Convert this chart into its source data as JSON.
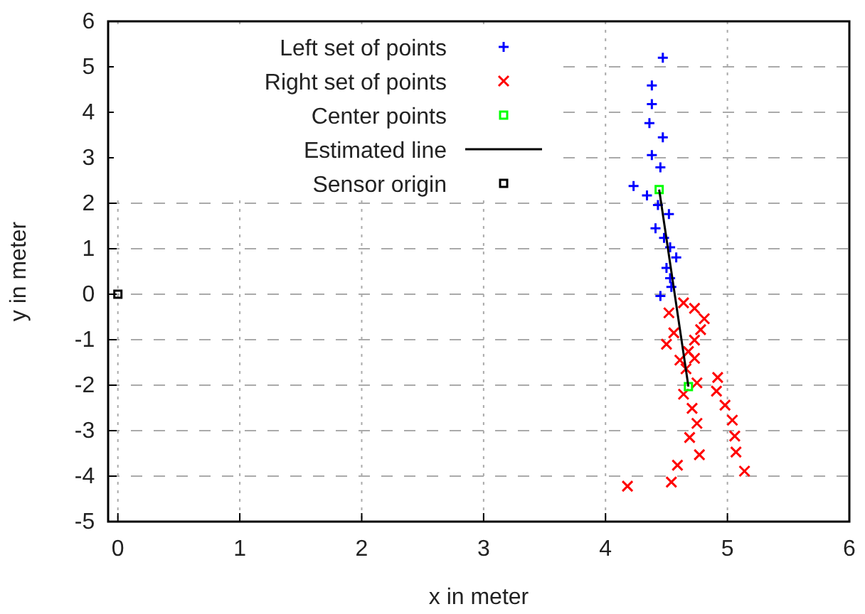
{
  "chart_data": {
    "type": "scatter",
    "xlabel": "x in meter",
    "ylabel": "y in meter",
    "xlim": [
      -0.08,
      6
    ],
    "ylim": [
      -5,
      6
    ],
    "xticks": [
      0,
      1,
      2,
      3,
      4,
      5,
      6
    ],
    "yticks": [
      -5,
      -4,
      -3,
      -2,
      -1,
      0,
      1,
      2,
      3,
      4,
      5,
      6
    ],
    "grid": true,
    "legend": "top left",
    "series": [
      {
        "name": "Left set of points",
        "marker": "plus",
        "color": "#0000ff",
        "x": [
          4.47,
          4.38,
          4.38,
          4.36,
          4.47,
          4.38,
          4.45,
          4.23,
          4.34,
          4.43,
          4.52,
          4.41,
          4.48,
          4.53,
          4.58,
          4.5,
          4.53,
          4.54,
          4.45
        ],
        "values": [
          5.2,
          4.59,
          4.18,
          3.76,
          3.45,
          3.06,
          2.79,
          2.38,
          2.17,
          1.96,
          1.76,
          1.45,
          1.24,
          1.03,
          0.81,
          0.58,
          0.35,
          0.16,
          -0.04
        ]
      },
      {
        "name": "Right set of points",
        "marker": "cross",
        "color": "#ff0000",
        "x": [
          4.64,
          4.73,
          4.52,
          4.81,
          4.78,
          4.56,
          4.73,
          4.5,
          4.68,
          4.61,
          4.73,
          4.66,
          4.92,
          4.75,
          4.91,
          4.64,
          4.98,
          4.71,
          5.04,
          4.75,
          5.06,
          4.69,
          5.07,
          4.77,
          4.59,
          5.14,
          4.54,
          4.18
        ],
        "values": [
          -0.19,
          -0.31,
          -0.41,
          -0.54,
          -0.78,
          -0.85,
          -1.01,
          -1.1,
          -1.26,
          -1.45,
          -1.41,
          -1.64,
          -1.83,
          -1.95,
          -2.13,
          -2.2,
          -2.44,
          -2.51,
          -2.77,
          -2.84,
          -3.12,
          -3.15,
          -3.47,
          -3.53,
          -3.76,
          -3.89,
          -4.13,
          -4.22
        ]
      },
      {
        "name": "Center points",
        "marker": "square",
        "color": "#00ff00",
        "x": [
          4.44,
          4.68
        ],
        "values": [
          2.3,
          -2.03
        ]
      },
      {
        "name": "Estimated line",
        "type": "line",
        "marker": "none",
        "color": "#000000",
        "x": [
          4.44,
          4.68
        ],
        "values": [
          2.3,
          -2.03
        ]
      },
      {
        "name": "Sensor origin",
        "marker": "square",
        "color": "#000000",
        "x": [
          0
        ],
        "values": [
          0
        ]
      }
    ]
  }
}
